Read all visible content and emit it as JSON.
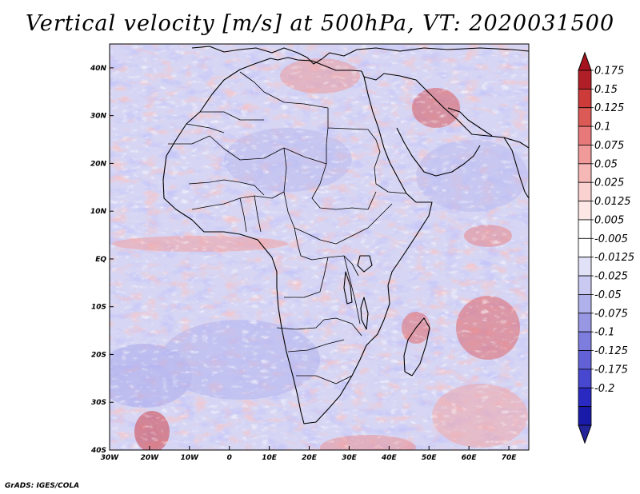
{
  "title": "Vertical velocity [m/s] at 500hPa, VT: 2020031500",
  "credit": "GrADS: IGES/COLA",
  "map": {
    "lon_range": [
      -30,
      75
    ],
    "lat_range": [
      -40,
      45
    ],
    "lon_ticks": [
      {
        "value": -30,
        "label": "30W"
      },
      {
        "value": -20,
        "label": "20W"
      },
      {
        "value": -10,
        "label": "10W"
      },
      {
        "value": 0,
        "label": "0"
      },
      {
        "value": 10,
        "label": "10E"
      },
      {
        "value": 20,
        "label": "20E"
      },
      {
        "value": 30,
        "label": "30E"
      },
      {
        "value": 40,
        "label": "40E"
      },
      {
        "value": 50,
        "label": "50E"
      },
      {
        "value": 60,
        "label": "60E"
      },
      {
        "value": 70,
        "label": "70E"
      }
    ],
    "lat_ticks": [
      {
        "value": 40,
        "label": "40N"
      },
      {
        "value": 30,
        "label": "30N"
      },
      {
        "value": 20,
        "label": "20N"
      },
      {
        "value": 10,
        "label": "10N"
      },
      {
        "value": 0,
        "label": "EQ"
      },
      {
        "value": -10,
        "label": "10S"
      },
      {
        "value": -20,
        "label": "20S"
      },
      {
        "value": -30,
        "label": "30S"
      },
      {
        "value": -40,
        "label": "40S"
      }
    ]
  },
  "colorbar": {
    "labels": [
      "0.175",
      "0.15",
      "0.125",
      "0.1",
      "0.075",
      "0.05",
      "0.025",
      "0.0125",
      "0.005",
      "-0.005",
      "-0.0125",
      "-0.025",
      "-0.05",
      "-0.075",
      "-0.1",
      "-0.125",
      "-0.175",
      "-0.2"
    ],
    "colors": [
      "#b01f28",
      "#cc3a3a",
      "#dc5a56",
      "#e8797a",
      "#f09a9a",
      "#f6b8b6",
      "#fad3d1",
      "#fde8e6",
      "#ffffff",
      "#ffffff",
      "#e1e1f7",
      "#c9c9f1",
      "#b0b0eb",
      "#9797e4",
      "#7d7dde",
      "#6262d6",
      "#4747cf",
      "#2a2ac2",
      "#1a1aa8"
    ],
    "top_arrow_color": "#a5141e",
    "bottom_arrow_color": "#24249a"
  }
}
